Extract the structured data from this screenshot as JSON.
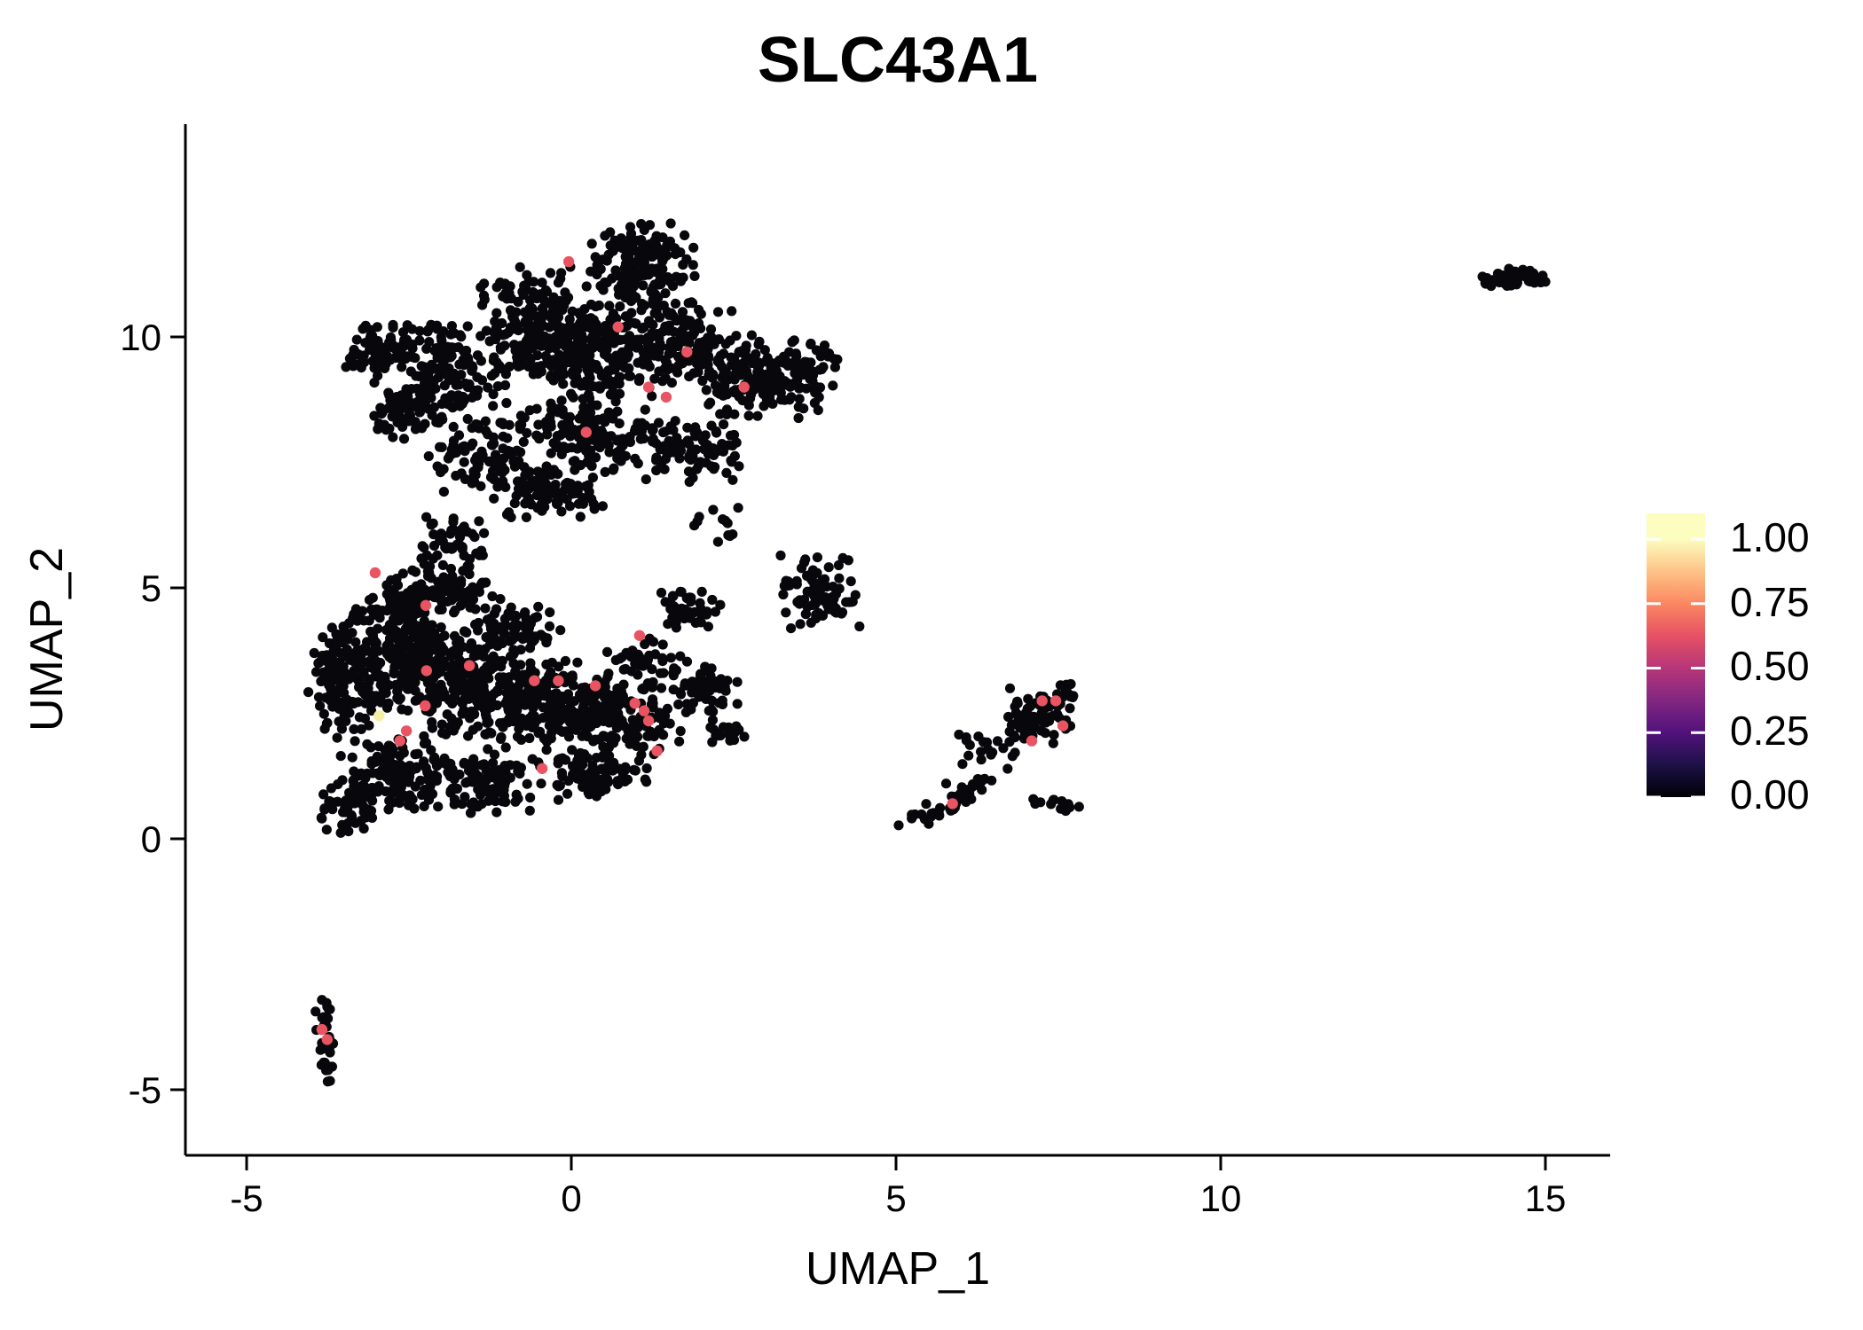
{
  "title": "SLC43A1",
  "axes": {
    "x_label": "UMAP_1",
    "y_label": "UMAP_2",
    "x_tick_labels": [
      "-5",
      "0",
      "5",
      "10",
      "15"
    ],
    "x_tick_values": [
      -5,
      0,
      5,
      10,
      15
    ],
    "y_tick_labels": [
      "10",
      "5",
      "0",
      "-5"
    ],
    "y_tick_values": [
      10,
      5,
      0,
      -5
    ]
  },
  "legend": {
    "labels": [
      "1.00",
      "0.75",
      "0.50",
      "0.25",
      "0.00"
    ],
    "values": [
      1.0,
      0.75,
      0.5,
      0.25,
      0.0
    ],
    "colormap": "magma",
    "bar_max_value": 1.1,
    "stops": [
      [
        0.0,
        "#000004"
      ],
      [
        0.125,
        "#1D1147"
      ],
      [
        0.25,
        "#51127C"
      ],
      [
        0.375,
        "#822681"
      ],
      [
        0.5,
        "#B63679"
      ],
      [
        0.625,
        "#E65164"
      ],
      [
        0.75,
        "#FB8761"
      ],
      [
        0.875,
        "#FEC287"
      ],
      [
        1.0,
        "#FCFDBF"
      ]
    ]
  },
  "chart_data": {
    "type": "scatter",
    "title": "SLC43A1",
    "xlabel": "UMAP_1",
    "ylabel": "UMAP_2",
    "xlim": [
      -5.9,
      16.0
    ],
    "ylim": [
      -6.3,
      14.2
    ],
    "grid": false,
    "legend_position": "right",
    "point_color_zero": "#08080C",
    "point_radius_px": 5.6,
    "n_cells_approx": 3700,
    "random_seed": 42,
    "clusters": [
      {
        "name": "upper-left-arm",
        "shape": "blob",
        "cx": -2.9,
        "cy": 9.7,
        "rx": 0.65,
        "ry": 0.55,
        "n": 70
      },
      {
        "name": "upper-main-1",
        "shape": "blob",
        "cx": -1.9,
        "cy": 9.2,
        "rx": 0.85,
        "ry": 1.1,
        "n": 150
      },
      {
        "name": "upper-main-2",
        "shape": "blob",
        "cx": -0.6,
        "cy": 10.2,
        "rx": 1.0,
        "ry": 1.2,
        "n": 200
      },
      {
        "name": "upper-apex",
        "shape": "blob",
        "cx": 1.05,
        "cy": 11.4,
        "rx": 0.85,
        "ry": 0.9,
        "n": 170
      },
      {
        "name": "upper-main-3",
        "shape": "blob",
        "cx": 0.3,
        "cy": 9.7,
        "rx": 1.1,
        "ry": 1.0,
        "n": 200
      },
      {
        "name": "upper-main-4",
        "shape": "blob",
        "cx": 1.7,
        "cy": 9.9,
        "rx": 0.9,
        "ry": 0.9,
        "n": 150
      },
      {
        "name": "upper-right-lobe",
        "shape": "blob",
        "cx": 2.8,
        "cy": 9.2,
        "rx": 0.9,
        "ry": 0.85,
        "n": 140
      },
      {
        "name": "upper-right-edge",
        "shape": "blob",
        "cx": 3.6,
        "cy": 9.2,
        "rx": 0.5,
        "ry": 0.8,
        "n": 70
      },
      {
        "name": "upper-lower-band",
        "shape": "blob",
        "cx": 0.2,
        "cy": 8.1,
        "rx": 1.2,
        "ry": 0.8,
        "n": 170
      },
      {
        "name": "upper-lower-left",
        "shape": "blob",
        "cx": -1.4,
        "cy": 7.6,
        "rx": 0.8,
        "ry": 0.8,
        "n": 90
      },
      {
        "name": "upper-taper",
        "shape": "blob",
        "cx": -0.3,
        "cy": 6.9,
        "rx": 0.9,
        "ry": 0.6,
        "n": 80
      },
      {
        "name": "upper-lower-right",
        "shape": "blob",
        "cx": 1.9,
        "cy": 7.8,
        "rx": 0.9,
        "ry": 0.7,
        "n": 90
      },
      {
        "name": "upper-left-edge",
        "shape": "blob",
        "cx": -2.6,
        "cy": 8.5,
        "rx": 0.5,
        "ry": 0.6,
        "n": 50
      },
      {
        "name": "neck-bridge",
        "shape": "blob",
        "cx": -1.8,
        "cy": 5.9,
        "rx": 0.55,
        "ry": 0.75,
        "n": 55
      },
      {
        "name": "between-stragglers",
        "shape": "blob",
        "cx": 2.3,
        "cy": 6.2,
        "rx": 0.5,
        "ry": 0.4,
        "n": 12
      },
      {
        "name": "lower-left-edge",
        "shape": "blob",
        "cx": -3.5,
        "cy": 3.3,
        "rx": 0.55,
        "ry": 1.3,
        "n": 160
      },
      {
        "name": "lower-dense-1",
        "shape": "blob",
        "cx": -2.6,
        "cy": 3.7,
        "rx": 0.8,
        "ry": 1.2,
        "n": 240
      },
      {
        "name": "lower-dense-2",
        "shape": "blob",
        "cx": -1.5,
        "cy": 3.1,
        "rx": 0.9,
        "ry": 1.1,
        "n": 220
      },
      {
        "name": "lower-mid",
        "shape": "blob",
        "cx": -0.4,
        "cy": 2.7,
        "rx": 1.0,
        "ry": 0.95,
        "n": 190
      },
      {
        "name": "lower-right",
        "shape": "blob",
        "cx": 0.8,
        "cy": 2.4,
        "rx": 0.95,
        "ry": 0.85,
        "n": 150
      },
      {
        "name": "lower-bottom-1",
        "shape": "blob",
        "cx": -2.7,
        "cy": 1.3,
        "rx": 0.85,
        "ry": 0.8,
        "n": 120
      },
      {
        "name": "lower-bottom-2",
        "shape": "blob",
        "cx": -1.4,
        "cy": 1.1,
        "rx": 0.9,
        "ry": 0.7,
        "n": 110
      },
      {
        "name": "lower-bottom-3",
        "shape": "blob",
        "cx": 0.3,
        "cy": 1.3,
        "rx": 0.9,
        "ry": 0.55,
        "n": 80
      },
      {
        "name": "lower-left-tip",
        "shape": "blob",
        "cx": -3.4,
        "cy": 0.7,
        "rx": 0.45,
        "ry": 0.65,
        "n": 55
      },
      {
        "name": "lower-top-band",
        "shape": "blob",
        "cx": -2.1,
        "cy": 4.9,
        "rx": 1.1,
        "ry": 0.5,
        "n": 110
      },
      {
        "name": "lower-top-right",
        "shape": "blob",
        "cx": -0.9,
        "cy": 4.2,
        "rx": 0.8,
        "ry": 0.5,
        "n": 70
      },
      {
        "name": "lower-tight-clump",
        "shape": "blob",
        "cx": 1.8,
        "cy": 4.55,
        "rx": 0.5,
        "ry": 0.4,
        "n": 40
      },
      {
        "name": "lower-right-bump",
        "shape": "blob",
        "cx": 2.0,
        "cy": 3.0,
        "rx": 0.6,
        "ry": 0.55,
        "n": 55
      },
      {
        "name": "lower-sparse",
        "shape": "blob",
        "cx": 1.1,
        "cy": 3.6,
        "rx": 0.6,
        "ry": 0.45,
        "n": 35
      },
      {
        "name": "lower-right-tip",
        "shape": "blob",
        "cx": 2.4,
        "cy": 2.2,
        "rx": 0.35,
        "ry": 0.35,
        "n": 20
      },
      {
        "name": "mid-island",
        "shape": "blob",
        "cx": 3.8,
        "cy": 4.9,
        "rx": 0.7,
        "ry": 0.8,
        "n": 85
      },
      {
        "name": "right-knot",
        "shape": "blob",
        "cx": 7.15,
        "cy": 2.45,
        "rx": 0.55,
        "ry": 0.6,
        "n": 75
      },
      {
        "name": "right-arm",
        "shape": "chain",
        "x1": 5.35,
        "y1": 0.35,
        "x2": 6.35,
        "y2": 1.15,
        "jitter": 0.12,
        "n": 45
      },
      {
        "name": "right-scatter",
        "shape": "blob",
        "cx": 6.35,
        "cy": 1.8,
        "rx": 0.5,
        "ry": 0.45,
        "n": 20
      },
      {
        "name": "right-lower-blob",
        "shape": "chain",
        "x1": 7.2,
        "y1": 0.85,
        "x2": 7.75,
        "y2": 0.6,
        "jitter": 0.07,
        "n": 15
      },
      {
        "name": "right-top-bits",
        "shape": "blob",
        "cx": 7.6,
        "cy": 3.0,
        "rx": 0.3,
        "ry": 0.4,
        "n": 12
      },
      {
        "name": "far-right-island",
        "shape": "blob",
        "cx": 14.5,
        "cy": 11.15,
        "rx": 0.55,
        "ry": 0.22,
        "n": 60
      },
      {
        "name": "bottom-left-island",
        "shape": "chain",
        "x1": -3.85,
        "y1": -3.25,
        "x2": -3.72,
        "y2": -4.85,
        "jitter": 0.08,
        "n": 38
      }
    ],
    "expressing_cells": [
      {
        "x": -0.04,
        "y": 11.5,
        "value": 0.65,
        "color": "#E85461"
      },
      {
        "x": 0.72,
        "y": 10.2,
        "value": 0.65,
        "color": "#E85461"
      },
      {
        "x": 1.78,
        "y": 9.7,
        "value": 0.65,
        "color": "#E85461"
      },
      {
        "x": 1.19,
        "y": 9.0,
        "value": 0.65,
        "color": "#E85461"
      },
      {
        "x": 1.46,
        "y": 8.8,
        "value": 0.65,
        "color": "#E85461"
      },
      {
        "x": 2.66,
        "y": 9.0,
        "value": 0.65,
        "color": "#E85461"
      },
      {
        "x": 0.23,
        "y": 8.1,
        "value": 0.65,
        "color": "#E85461"
      },
      {
        "x": -3.02,
        "y": 5.3,
        "value": 0.65,
        "color": "#E85461"
      },
      {
        "x": -2.24,
        "y": 4.65,
        "value": 0.65,
        "color": "#E85461"
      },
      {
        "x": -2.23,
        "y": 3.35,
        "value": 0.65,
        "color": "#E85461"
      },
      {
        "x": -1.57,
        "y": 3.45,
        "value": 0.65,
        "color": "#E85461"
      },
      {
        "x": -0.57,
        "y": 3.15,
        "value": 0.65,
        "color": "#E85461"
      },
      {
        "x": -2.25,
        "y": 2.65,
        "value": 0.65,
        "color": "#E85461"
      },
      {
        "x": 1.05,
        "y": 4.05,
        "value": 0.65,
        "color": "#E85461"
      },
      {
        "x": -0.2,
        "y": 3.15,
        "value": 0.65,
        "color": "#E85461"
      },
      {
        "x": 0.37,
        "y": 3.05,
        "value": 0.65,
        "color": "#E85461"
      },
      {
        "x": 0.98,
        "y": 2.7,
        "value": 0.65,
        "color": "#E85461"
      },
      {
        "x": 1.12,
        "y": 2.55,
        "value": 0.65,
        "color": "#E85461"
      },
      {
        "x": 1.19,
        "y": 2.35,
        "value": 0.65,
        "color": "#E85461"
      },
      {
        "x": 1.32,
        "y": 1.75,
        "value": 0.65,
        "color": "#E85461"
      },
      {
        "x": -0.45,
        "y": 1.4,
        "value": 0.65,
        "color": "#E85461"
      },
      {
        "x": -2.54,
        "y": 2.15,
        "value": 0.65,
        "color": "#E85461"
      },
      {
        "x": -2.64,
        "y": 1.95,
        "value": 0.65,
        "color": "#E85461"
      },
      {
        "x": -2.96,
        "y": 2.45,
        "value": 0.95,
        "color": "#F5EFA3"
      },
      {
        "x": 7.25,
        "y": 2.75,
        "value": 0.65,
        "color": "#E85461"
      },
      {
        "x": 7.46,
        "y": 2.75,
        "value": 0.65,
        "color": "#E85461"
      },
      {
        "x": 7.57,
        "y": 2.25,
        "value": 0.65,
        "color": "#E85461"
      },
      {
        "x": 7.09,
        "y": 1.95,
        "value": 0.65,
        "color": "#E85461"
      },
      {
        "x": 5.87,
        "y": 0.7,
        "value": 0.65,
        "color": "#E85461"
      },
      {
        "x": -3.84,
        "y": -3.8,
        "value": 0.65,
        "color": "#E85461"
      },
      {
        "x": -3.76,
        "y": -4.0,
        "value": 0.65,
        "color": "#E85461"
      }
    ]
  }
}
